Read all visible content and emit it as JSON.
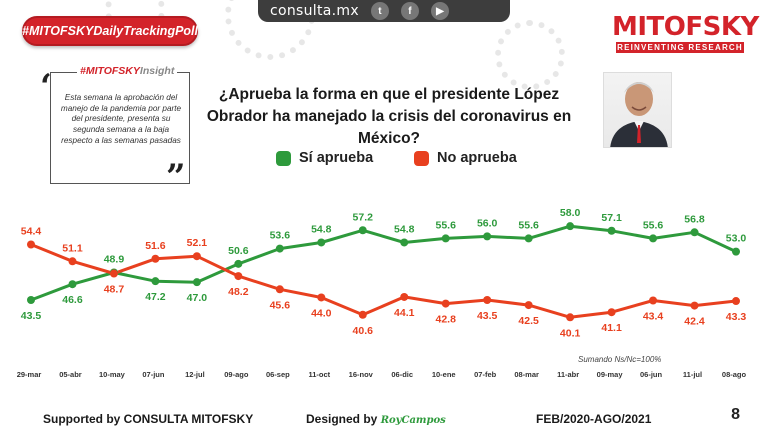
{
  "topbar": {
    "site": "consulta.mx",
    "icons": [
      "twitter-icon",
      "facebook-icon",
      "youtube-icon"
    ]
  },
  "tag": "#MITOFSKYDailyTrackingPoll",
  "insight": {
    "title_brand": "#MITOFSKY",
    "title_rest": "Insight",
    "text": "Esta semana la aprobación del manejo de la pandemia por parte del presidente, presenta su segunda semana a la baja respecto a las semanas pasadas"
  },
  "brand": {
    "name": "MITOFSKY",
    "tagline": "REINVENTING RESEARCH"
  },
  "question": "¿Aprueba la forma en que el presidente López Obrador ha manejado la crisis del coronavirus en México?",
  "legend": {
    "approve": "Sí aprueba",
    "disapprove": "No aprueba"
  },
  "colors": {
    "approve": "#2e9a3c",
    "disapprove": "#e8401f",
    "brand": "#d3232a"
  },
  "chart_data": {
    "type": "line",
    "title": "¿Aprueba la forma en que el presidente López Obrador ha manejado la crisis del coronavirus en México?",
    "categories": [
      "29-mar",
      "05-abr",
      "10-may",
      "07-jun",
      "12-jul",
      "09-ago",
      "06-sep",
      "11-oct",
      "16-nov",
      "06-dic",
      "10-ene",
      "07-feb",
      "08-mar",
      "11-abr",
      "09-may",
      "06-jun",
      "11-jul",
      "08-ago"
    ],
    "series": [
      {
        "name": "Sí aprueba",
        "values": [
          43.5,
          46.6,
          48.9,
          47.2,
          47.0,
          50.6,
          53.6,
          54.8,
          57.2,
          54.8,
          55.6,
          56.0,
          55.6,
          58.0,
          57.1,
          55.6,
          56.8,
          53.0
        ]
      },
      {
        "name": "No aprueba",
        "values": [
          54.4,
          51.1,
          48.7,
          51.6,
          52.1,
          48.2,
          45.6,
          44.0,
          40.6,
          44.1,
          42.8,
          43.5,
          42.5,
          40.1,
          41.1,
          43.4,
          42.4,
          43.3
        ]
      }
    ],
    "ylim": [
      38,
      60
    ],
    "grid": false
  },
  "note": "Sumando Ns/Nc=100%",
  "footer": {
    "supported": "Supported by  CONSULTA  MITOFSKY",
    "designed": "Designed by",
    "designer": "RoyCampos",
    "period": "FEB/2020-AGO/2021",
    "page": "8"
  }
}
